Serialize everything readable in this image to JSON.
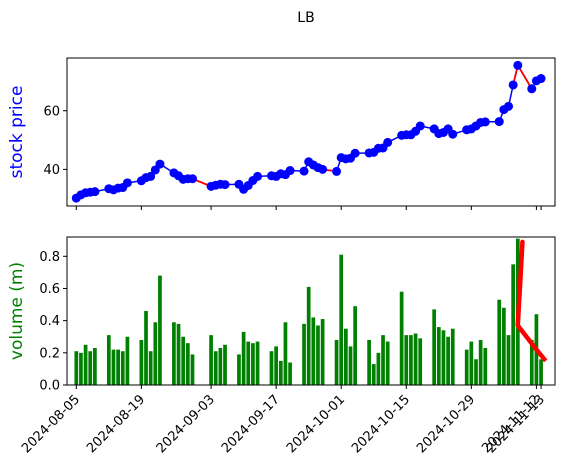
{
  "figure": {
    "title": "LB"
  },
  "colors": {
    "price": "#0000ff",
    "segment": "#ff0000",
    "volume": "#008000",
    "volume_line": "#ff0000"
  },
  "chart_data": [
    {
      "type": "line",
      "title": "",
      "ylabel": "stock price",
      "ylim": [
        27.5,
        78
      ],
      "yticks": [
        40,
        60
      ],
      "xlim": [
        "2024-08-03",
        "2024-11-16"
      ],
      "x": [
        "2024-08-05",
        "2024-08-06",
        "2024-08-07",
        "2024-08-08",
        "2024-08-09",
        "2024-08-12",
        "2024-08-13",
        "2024-08-14",
        "2024-08-15",
        "2024-08-16",
        "2024-08-19",
        "2024-08-20",
        "2024-08-21",
        "2024-08-22",
        "2024-08-23",
        "2024-08-26",
        "2024-08-27",
        "2024-08-28",
        "2024-08-29",
        "2024-08-30",
        "2024-09-03",
        "2024-09-04",
        "2024-09-05",
        "2024-09-06",
        "2024-09-09",
        "2024-09-10",
        "2024-09-11",
        "2024-09-12",
        "2024-09-13",
        "2024-09-16",
        "2024-09-17",
        "2024-09-18",
        "2024-09-19",
        "2024-09-20",
        "2024-09-23",
        "2024-09-24",
        "2024-09-25",
        "2024-09-26",
        "2024-09-27",
        "2024-09-30",
        "2024-10-01",
        "2024-10-02",
        "2024-10-03",
        "2024-10-04",
        "2024-10-07",
        "2024-10-08",
        "2024-10-09",
        "2024-10-10",
        "2024-10-11",
        "2024-10-14",
        "2024-10-15",
        "2024-10-16",
        "2024-10-17",
        "2024-10-18",
        "2024-10-21",
        "2024-10-22",
        "2024-10-23",
        "2024-10-24",
        "2024-10-25",
        "2024-10-28",
        "2024-10-29",
        "2024-10-30",
        "2024-10-31",
        "2024-11-01",
        "2024-11-04",
        "2024-11-05",
        "2024-11-06",
        "2024-11-07",
        "2024-11-08",
        "2024-11-11",
        "2024-11-12",
        "2024-11-13",
        "2024-11-14"
      ],
      "series": [
        {
          "name": "",
          "values": [
            30.2,
            31.3,
            32.0,
            32.2,
            32.4,
            33.4,
            33.0,
            33.6,
            33.8,
            35.4,
            36.1,
            37.2,
            37.6,
            39.8,
            41.8,
            38.8,
            37.8,
            36.6,
            36.8,
            36.8,
            34.2,
            34.6,
            34.9,
            34.8,
            34.9,
            33.2,
            34.5,
            36.2,
            37.6,
            37.8,
            37.6,
            38.5,
            38.2,
            39.6,
            39.4,
            42.6,
            41.5,
            40.6,
            40.0,
            39.3,
            44.0,
            43.6,
            43.8,
            45.5,
            45.6,
            45.8,
            47.2,
            47.3,
            49.2,
            51.6,
            51.8,
            51.8,
            53.0,
            54.8,
            53.8,
            52.2,
            52.6,
            53.8,
            52.0,
            53.5,
            53.8,
            54.8,
            56.0,
            56.2,
            56.3,
            60.4,
            61.5,
            68.8,
            75.5,
            67.5,
            70.2,
            71.0,
            null
          ]
        }
      ],
      "red_segments": [
        {
          "from": "2024-08-26",
          "to": "2024-09-03"
        },
        {
          "from": "2024-09-24",
          "to": "2024-09-30"
        },
        {
          "from": "2024-10-22",
          "to": "2024-10-25"
        },
        {
          "from": "2024-11-07",
          "to": "2024-11-11"
        }
      ]
    },
    {
      "type": "bar",
      "title": "",
      "ylabel": "volume (m)",
      "ylim": [
        0,
        0.92
      ],
      "yticks": [
        0.0,
        0.2,
        0.4,
        0.6,
        0.8
      ],
      "xlim": [
        "2024-08-03",
        "2024-11-16"
      ],
      "xticks": [
        "2024-08-05",
        "2024-08-19",
        "2024-09-03",
        "2024-09-17",
        "2024-10-01",
        "2024-10-15",
        "2024-10-29",
        "2024-11-12",
        "2024-11-13"
      ],
      "x": [
        "2024-08-05",
        "2024-08-06",
        "2024-08-07",
        "2024-08-08",
        "2024-08-09",
        "2024-08-12",
        "2024-08-13",
        "2024-08-14",
        "2024-08-15",
        "2024-08-16",
        "2024-08-19",
        "2024-08-20",
        "2024-08-21",
        "2024-08-22",
        "2024-08-23",
        "2024-08-26",
        "2024-08-27",
        "2024-08-28",
        "2024-08-29",
        "2024-08-30",
        "2024-09-03",
        "2024-09-04",
        "2024-09-05",
        "2024-09-06",
        "2024-09-09",
        "2024-09-10",
        "2024-09-11",
        "2024-09-12",
        "2024-09-13",
        "2024-09-16",
        "2024-09-17",
        "2024-09-18",
        "2024-09-19",
        "2024-09-20",
        "2024-09-23",
        "2024-09-24",
        "2024-09-25",
        "2024-09-26",
        "2024-09-27",
        "2024-09-30",
        "2024-10-01",
        "2024-10-02",
        "2024-10-03",
        "2024-10-04",
        "2024-10-07",
        "2024-10-08",
        "2024-10-09",
        "2024-10-10",
        "2024-10-11",
        "2024-10-14",
        "2024-10-15",
        "2024-10-16",
        "2024-10-17",
        "2024-10-18",
        "2024-10-21",
        "2024-10-22",
        "2024-10-23",
        "2024-10-24",
        "2024-10-25",
        "2024-10-28",
        "2024-10-29",
        "2024-10-30",
        "2024-10-31",
        "2024-11-01",
        "2024-11-04",
        "2024-11-05",
        "2024-11-06",
        "2024-11-07",
        "2024-11-08",
        "2024-11-11",
        "2024-11-12",
        "2024-11-13",
        "2024-11-14"
      ],
      "series": [
        {
          "name": "",
          "values": [
            0.21,
            0.2,
            0.25,
            0.21,
            0.23,
            0.31,
            0.22,
            0.22,
            0.21,
            0.3,
            0.28,
            0.46,
            0.21,
            0.39,
            0.68,
            0.39,
            0.38,
            0.3,
            0.26,
            0.19,
            0.31,
            0.21,
            0.23,
            0.25,
            0.19,
            0.33,
            0.27,
            0.26,
            0.27,
            0.21,
            0.24,
            0.15,
            0.39,
            0.14,
            0.38,
            0.61,
            0.42,
            0.37,
            0.41,
            0.28,
            0.81,
            0.35,
            0.24,
            0.49,
            0.28,
            0.13,
            0.2,
            0.31,
            0.27,
            0.58,
            0.31,
            0.31,
            0.32,
            0.29,
            0.47,
            0.36,
            0.34,
            0.3,
            0.35,
            0.22,
            0.27,
            0.16,
            0.28,
            0.23,
            0.53,
            0.48,
            0.31,
            0.75,
            0.91,
            0.28,
            0.44,
            0.16,
            null
          ]
        }
      ],
      "volume_line": [
        {
          "x": "2024-11-08",
          "y": 0.38
        },
        {
          "x": "2024-11-09",
          "y": 0.89
        },
        {
          "x": "2024-11-08",
          "y": 0.37
        },
        {
          "x": "2024-11-12",
          "y": 0.22
        },
        {
          "x": "2024-11-14",
          "y": 0.15
        }
      ]
    }
  ]
}
